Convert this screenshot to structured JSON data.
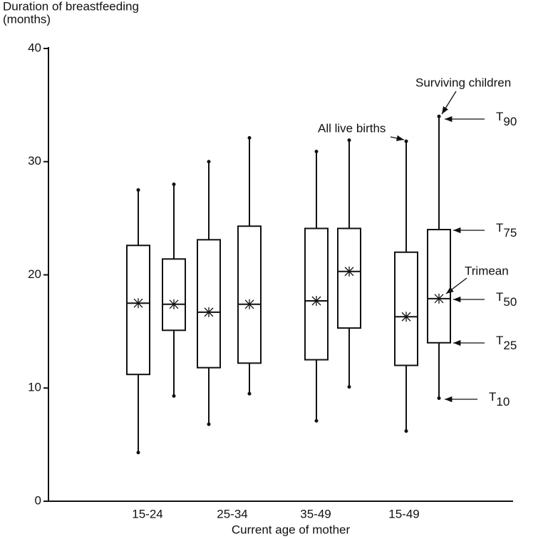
{
  "chart_data": {
    "type": "box",
    "y_label": [
      "Duration of breastfeeding",
      "(months)"
    ],
    "x_label": "Current age of mother",
    "categories": [
      "15-24",
      "25-34",
      "35-49",
      "15-49"
    ],
    "ylim": [
      0,
      40
    ],
    "yticks": [
      0,
      10,
      20,
      30,
      40
    ],
    "series": [
      {
        "name": "All live births",
        "color": "#111111",
        "t10": [
          4.3,
          6.8,
          7.1,
          6.2
        ],
        "t25": [
          11.2,
          11.8,
          12.5,
          12.0
        ],
        "t50": [
          17.5,
          16.7,
          17.7,
          16.3
        ],
        "t75": [
          22.6,
          23.1,
          24.1,
          22.0
        ],
        "t90": [
          27.5,
          30.0,
          30.9,
          31.8
        ]
      },
      {
        "name": "Surviving children",
        "color": "#111111",
        "t10": [
          9.3,
          9.5,
          10.1,
          9.1
        ],
        "t25": [
          15.1,
          12.2,
          15.3,
          14.0
        ],
        "t50": [
          17.4,
          17.4,
          20.3,
          17.9
        ],
        "t75": [
          21.4,
          24.3,
          24.1,
          24.0
        ],
        "t90": [
          28.0,
          32.1,
          31.9,
          34.0
        ]
      }
    ],
    "key_labels": [
      {
        "letter": "T",
        "sub": "90"
      },
      {
        "letter": "T",
        "sub": "75"
      },
      {
        "letter": "T",
        "sub": "50"
      },
      {
        "letter": "T",
        "sub": "25"
      },
      {
        "letter": "T",
        "sub": "10"
      }
    ],
    "trimean_label": "Trimean"
  }
}
